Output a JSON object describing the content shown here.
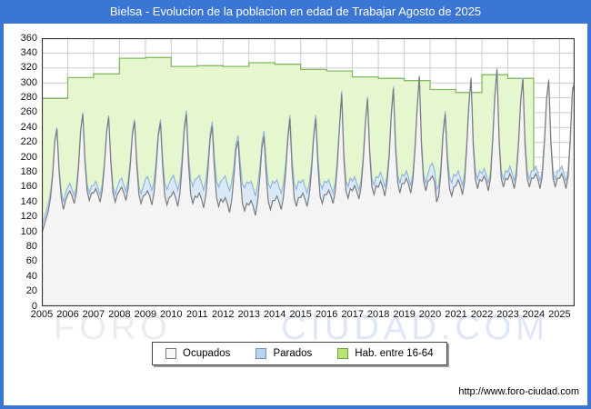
{
  "frame": {
    "title": "Bielsa - Evolucion de la poblacion en edad de Trabajar Agosto de 2025",
    "url": "http://www.foro-ciudad.com"
  },
  "watermark": {
    "part1": "FORO",
    "part2": "CIUDAD.COM"
  },
  "legend": [
    {
      "label": "Ocupados",
      "fill": "#f8f8f8",
      "border": "#777777"
    },
    {
      "label": "Parados",
      "fill": "#b7d2ee",
      "border": "#6f94bf"
    },
    {
      "label": "Hab. entre 16-64",
      "fill": "#b8e474",
      "border": "#6da13e"
    }
  ],
  "chart_data": {
    "type": "area",
    "title": "Bielsa - Evolucion de la poblacion en edad de Trabajar Agosto de 2025",
    "xlabel": "",
    "ylabel": "",
    "ylim": [
      0,
      360
    ],
    "ytick_step": 20,
    "grid": true,
    "legend_position": "bottom",
    "years": [
      2005,
      2006,
      2007,
      2008,
      2009,
      2010,
      2011,
      2012,
      2013,
      2014,
      2015,
      2016,
      2017,
      2018,
      2019,
      2020,
      2021,
      2022,
      2023,
      2024,
      2025
    ],
    "x_range": "monthly, Jan 2005 - Aug 2025",
    "colors": {
      "grid": "#cccccc",
      "plot_border": "#333333",
      "ocupados_fill": "#f4f4f4",
      "ocupados_line": "#7d7d7d",
      "parados_fill": "#d9e9f8",
      "parados_line": "#92b5e1",
      "hab_fill": "#e6f7cf",
      "hab_line": "#84bb61"
    },
    "series": [
      {
        "name": "Ocupados",
        "role": "stack-base",
        "values": [
          98,
          108,
          118,
          128,
          145,
          175,
          220,
          238,
          180,
          145,
          130,
          142,
          150,
          155,
          148,
          138,
          152,
          185,
          235,
          258,
          195,
          155,
          142,
          152,
          152,
          158,
          150,
          140,
          155,
          188,
          232,
          254,
          192,
          152,
          140,
          150,
          155,
          160,
          152,
          142,
          158,
          190,
          230,
          248,
          190,
          150,
          138,
          148,
          150,
          155,
          148,
          136,
          152,
          185,
          228,
          246,
          188,
          148,
          136,
          146,
          148,
          154,
          146,
          134,
          150,
          188,
          235,
          258,
          192,
          150,
          138,
          148,
          146,
          152,
          144,
          132,
          148,
          182,
          225,
          242,
          185,
          146,
          134,
          144,
          140,
          146,
          138,
          126,
          142,
          172,
          210,
          222,
          175,
          138,
          128,
          138,
          136,
          142,
          134,
          122,
          140,
          170,
          212,
          228,
          178,
          140,
          130,
          142,
          142,
          148,
          140,
          130,
          146,
          178,
          222,
          252,
          185,
          145,
          134,
          146,
          146,
          152,
          144,
          134,
          150,
          182,
          225,
          252,
          188,
          148,
          138,
          150,
          150,
          156,
          148,
          138,
          154,
          190,
          240,
          285,
          200,
          155,
          145,
          158,
          155,
          162,
          154,
          144,
          160,
          195,
          245,
          278,
          205,
          160,
          150,
          162,
          160,
          168,
          160,
          148,
          165,
          200,
          255,
          292,
          210,
          165,
          152,
          165,
          165,
          172,
          164,
          152,
          170,
          210,
          265,
          308,
          215,
          168,
          155,
          168,
          170,
          175,
          168,
          140,
          148,
          180,
          230,
          258,
          195,
          158,
          148,
          160,
          162,
          170,
          162,
          150,
          168,
          215,
          270,
          305,
          215,
          170,
          158,
          170,
          168,
          175,
          168,
          155,
          172,
          220,
          280,
          318,
          220,
          172,
          160,
          172,
          170,
          178,
          170,
          158,
          175,
          218,
          275,
          305,
          218,
          172,
          160,
          172,
          172,
          178,
          170,
          158,
          175,
          220,
          278,
          303,
          218,
          172,
          160,
          172,
          172,
          178,
          170,
          158,
          175,
          225,
          290,
          298
        ]
      },
      {
        "name": "Parados",
        "role": "stacked-on-ocupados",
        "values": [
          10,
          10,
          9,
          10,
          8,
          5,
          3,
          2,
          6,
          9,
          10,
          10,
          10,
          10,
          9,
          10,
          8,
          5,
          3,
          2,
          6,
          9,
          10,
          10,
          10,
          10,
          9,
          10,
          8,
          5,
          3,
          2,
          6,
          9,
          10,
          10,
          13,
          12,
          11,
          12,
          10,
          6,
          4,
          3,
          7,
          11,
          13,
          12,
          21,
          19,
          18,
          19,
          16,
          10,
          6,
          5,
          11,
          18,
          21,
          19,
          23,
          22,
          20,
          22,
          18,
          11,
          6,
          5,
          13,
          20,
          23,
          22,
          26,
          24,
          22,
          24,
          20,
          12,
          7,
          6,
          14,
          22,
          26,
          24,
          31,
          29,
          26,
          29,
          24,
          14,
          8,
          7,
          17,
          26,
          31,
          29,
          29,
          26,
          24,
          26,
          22,
          13,
          8,
          7,
          15,
          24,
          29,
          26,
          23,
          22,
          20,
          22,
          18,
          11,
          6,
          5,
          13,
          20,
          23,
          22,
          20,
          18,
          17,
          18,
          15,
          9,
          5,
          5,
          11,
          17,
          20,
          18,
          16,
          14,
          13,
          14,
          12,
          7,
          4,
          4,
          8,
          13,
          16,
          14,
          13,
          12,
          11,
          12,
          10,
          6,
          4,
          3,
          7,
          11,
          13,
          12,
          13,
          12,
          11,
          12,
          10,
          6,
          4,
          3,
          7,
          11,
          13,
          12,
          10,
          10,
          9,
          10,
          8,
          5,
          3,
          2,
          6,
          9,
          10,
          10,
          18,
          17,
          15,
          17,
          14,
          8,
          5,
          4,
          10,
          15,
          18,
          17,
          13,
          12,
          11,
          12,
          10,
          6,
          4,
          3,
          7,
          11,
          13,
          12,
          10,
          10,
          9,
          10,
          8,
          5,
          3,
          2,
          6,
          9,
          10,
          10,
          10,
          10,
          9,
          10,
          8,
          5,
          3,
          2,
          6,
          9,
          10,
          10,
          10,
          10,
          9,
          10,
          8,
          5,
          3,
          2,
          6,
          9,
          10,
          10,
          10,
          10,
          9,
          10,
          8,
          5,
          3,
          2
        ]
      },
      {
        "name": "Hab. entre 16-64",
        "role": "annual-step",
        "annual_years": [
          2005,
          2006,
          2007,
          2008,
          2009,
          2010,
          2011,
          2012,
          2013,
          2014,
          2015,
          2016,
          2017,
          2018,
          2019,
          2020,
          2021,
          2022,
          2023
        ],
        "annual_values": [
          279,
          307,
          312,
          333,
          334,
          322,
          323,
          322,
          327,
          325,
          318,
          316,
          308,
          306,
          303,
          291,
          287,
          311,
          306
        ]
      }
    ]
  }
}
